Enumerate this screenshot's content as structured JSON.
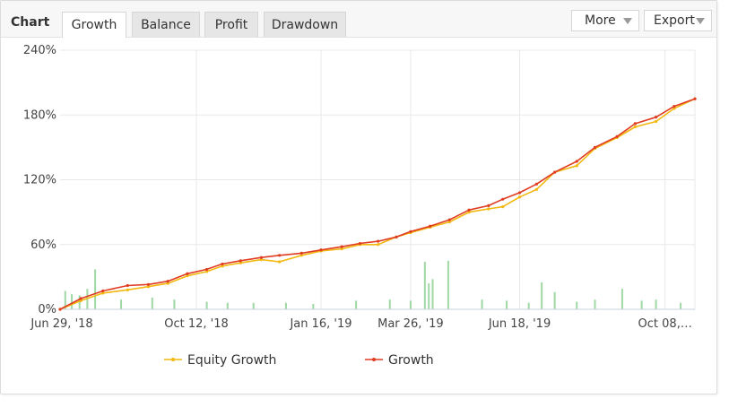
{
  "header": {
    "title": "Chart",
    "tabs": [
      {
        "label": "Growth",
        "active": true
      },
      {
        "label": "Balance",
        "active": false
      },
      {
        "label": "Profit",
        "active": false
      },
      {
        "label": "Drawdown",
        "active": false
      }
    ],
    "more_label": "More",
    "export_label": "Export"
  },
  "colors": {
    "growth": "#e03c21",
    "equity": "#f2b80f",
    "volume": "#9fd8a4",
    "grid": "#e8e8e8",
    "axis_text": "#444444"
  },
  "chart_data": {
    "type": "line",
    "ylim": [
      0,
      240
    ],
    "yticks": [
      "0%",
      "60%",
      "120%",
      "180%",
      "240%"
    ],
    "ytick_values": [
      0,
      60,
      120,
      180,
      240
    ],
    "x_start": "2018-06-29",
    "x_end": "2019-10-31",
    "xticks": [
      "Jun 29, '18",
      "Oct 12, '18",
      "Jan 16, '19",
      "Mar 26, '19",
      "Jun 18, '19",
      "Oct 08,…"
    ],
    "xtick_dates": [
      "2018-06-29",
      "2018-10-12",
      "2019-01-16",
      "2019-03-26",
      "2019-06-18",
      "2019-10-08"
    ],
    "grid": true,
    "legend_position": "bottom",
    "series": [
      {
        "name": "Equity Growth",
        "x": [
          "2018-06-29",
          "2018-07-15",
          "2018-08-01",
          "2018-08-20",
          "2018-09-05",
          "2018-09-20",
          "2018-10-05",
          "2018-10-20",
          "2018-11-01",
          "2018-11-15",
          "2018-12-01",
          "2018-12-15",
          "2019-01-01",
          "2019-01-16",
          "2019-02-01",
          "2019-02-15",
          "2019-03-01",
          "2019-03-15",
          "2019-03-26",
          "2019-04-10",
          "2019-04-25",
          "2019-05-10",
          "2019-05-25",
          "2019-06-05",
          "2019-06-18",
          "2019-07-01",
          "2019-07-15",
          "2019-08-01",
          "2019-08-15",
          "2019-09-01",
          "2019-09-15",
          "2019-10-01",
          "2019-10-15",
          "2019-10-31"
        ],
        "values": [
          0,
          8,
          15,
          18,
          21,
          24,
          31,
          35,
          40,
          43,
          46,
          44,
          50,
          54,
          56,
          60,
          60,
          67,
          71,
          76,
          81,
          90,
          93,
          95,
          104,
          111,
          127,
          133,
          149,
          159,
          169,
          174,
          186,
          195
        ]
      },
      {
        "name": "Growth",
        "x": [
          "2018-06-29",
          "2018-07-15",
          "2018-08-01",
          "2018-08-20",
          "2018-09-05",
          "2018-09-20",
          "2018-10-05",
          "2018-10-20",
          "2018-11-01",
          "2018-11-15",
          "2018-12-01",
          "2018-12-15",
          "2019-01-01",
          "2019-01-16",
          "2019-02-01",
          "2019-02-15",
          "2019-03-01",
          "2019-03-15",
          "2019-03-26",
          "2019-04-10",
          "2019-04-25",
          "2019-05-10",
          "2019-05-25",
          "2019-06-05",
          "2019-06-18",
          "2019-07-01",
          "2019-07-15",
          "2019-08-01",
          "2019-08-15",
          "2019-09-01",
          "2019-09-15",
          "2019-10-01",
          "2019-10-15",
          "2019-10-31"
        ],
        "values": [
          0,
          10,
          17,
          22,
          23,
          26,
          33,
          37,
          42,
          45,
          48,
          50,
          52,
          55,
          58,
          61,
          63,
          67,
          72,
          77,
          83,
          92,
          96,
          102,
          108,
          116,
          127,
          137,
          150,
          160,
          172,
          178,
          188,
          195
        ]
      }
    ],
    "volume_bars": {
      "x": [
        "2018-07-03",
        "2018-07-08",
        "2018-07-14",
        "2018-07-20",
        "2018-07-26",
        "2018-08-15",
        "2018-09-08",
        "2018-09-25",
        "2018-10-20",
        "2018-11-05",
        "2018-11-25",
        "2018-12-20",
        "2019-01-10",
        "2019-02-12",
        "2019-03-10",
        "2019-03-26",
        "2019-04-06",
        "2019-04-09",
        "2019-04-12",
        "2019-04-24",
        "2019-05-20",
        "2019-06-08",
        "2019-06-25",
        "2019-07-05",
        "2019-07-15",
        "2019-08-01",
        "2019-08-15",
        "2019-09-05",
        "2019-09-20",
        "2019-10-01",
        "2019-10-20"
      ],
      "values": [
        17,
        14,
        13,
        19,
        37,
        9,
        11,
        9,
        7,
        6,
        6,
        6,
        5,
        8,
        9,
        8,
        44,
        24,
        28,
        45,
        9,
        8,
        6,
        25,
        16,
        7,
        9,
        19,
        8,
        9,
        6
      ]
    }
  }
}
